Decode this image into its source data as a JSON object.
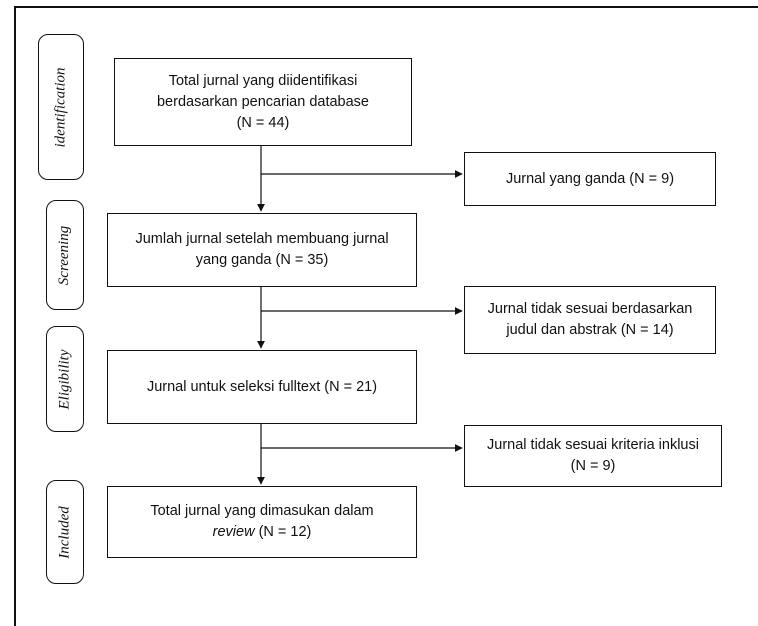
{
  "stages": [
    {
      "id": "identification",
      "label": "identification"
    },
    {
      "id": "screening",
      "label": "Screening"
    },
    {
      "id": "eligibility",
      "label": "Eligibility"
    },
    {
      "id": "included",
      "label": "Included"
    }
  ],
  "main_boxes": [
    {
      "id": "total-identified",
      "lines": [
        "Total jurnal yang diidentifikasi",
        "berdasarkan pencarian database",
        "(N = 44)"
      ]
    },
    {
      "id": "after-duplicates",
      "lines": [
        "Jumlah jurnal setelah membuang jurnal",
        "yang ganda (N = 35)"
      ]
    },
    {
      "id": "fulltext",
      "lines": [
        "Jurnal untuk seleksi fulltext (N = 21)"
      ]
    },
    {
      "id": "included-total",
      "line1": "Total jurnal yang dimasukan dalam",
      "line2_em": "review",
      "line2_rest": " (N = 12)"
    }
  ],
  "side_boxes": [
    {
      "id": "duplicates",
      "lines": [
        "Jurnal yang ganda (N = 9)"
      ]
    },
    {
      "id": "excluded-title-abstract",
      "lines": [
        "Jurnal tidak sesuai berdasarkan",
        "judul dan abstrak (N = 14)"
      ]
    },
    {
      "id": "excluded-criteria",
      "lines": [
        "Jurnal tidak sesuai kriteria inklusi",
        "(N = 9)"
      ]
    }
  ]
}
